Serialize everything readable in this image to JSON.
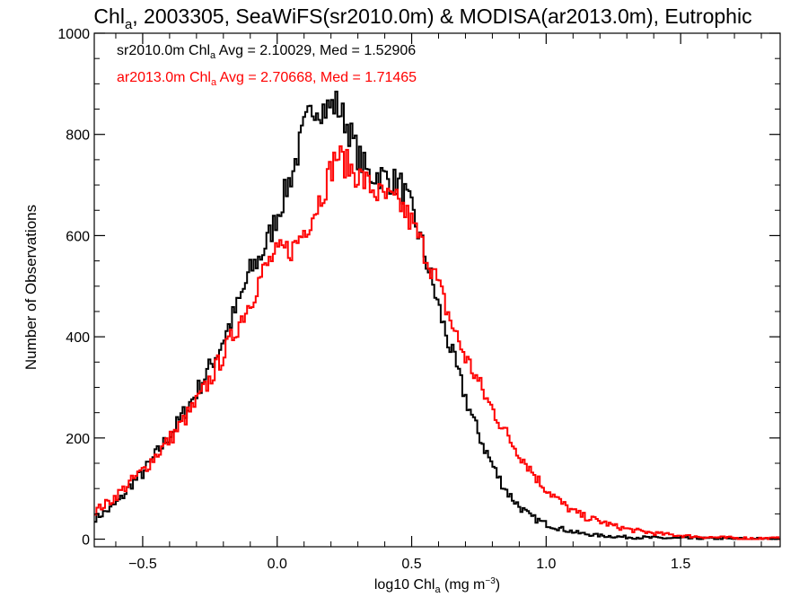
{
  "chart_data": {
    "type": "line",
    "title": {
      "pre": "Chl",
      "sub": "a",
      "post": ", 2003305, SeaWiFS(sr2010.0m) & MODISA(ar2013.0m), Eutrophic"
    },
    "xlabel": {
      "pre": "log10 Chl",
      "sub": "a",
      "mid": " (mg m",
      "sup": "−3",
      "post": ")"
    },
    "ylabel": "Number of Observations",
    "xlim": [
      -0.68,
      1.87
    ],
    "ylim": [
      -15,
      1000
    ],
    "x_ticks": [
      "−0.5",
      "0.0",
      "0.5",
      "1.0",
      "1.5"
    ],
    "x_tick_values": [
      -0.5,
      0.0,
      0.5,
      1.0,
      1.5
    ],
    "y_ticks": [
      "0",
      "200",
      "400",
      "600",
      "800",
      "1000"
    ],
    "y_tick_values": [
      0,
      200,
      400,
      600,
      800,
      1000
    ],
    "grid": false,
    "step": "histogram",
    "series": [
      {
        "name": "sr2010.0m",
        "legend": {
          "pre": "sr2010.0m Chl",
          "sub": "a",
          "post": " Avg = 2.10029, Med = 1.52906"
        },
        "color": "#000000",
        "points": [
          [
            -0.68,
            40
          ],
          [
            -0.62,
            60
          ],
          [
            -0.58,
            80
          ],
          [
            -0.54,
            110
          ],
          [
            -0.5,
            130
          ],
          [
            -0.46,
            160
          ],
          [
            -0.42,
            190
          ],
          [
            -0.38,
            220
          ],
          [
            -0.34,
            255
          ],
          [
            -0.3,
            290
          ],
          [
            -0.26,
            330
          ],
          [
            -0.22,
            370
          ],
          [
            -0.18,
            420
          ],
          [
            -0.14,
            470
          ],
          [
            -0.1,
            530
          ],
          [
            -0.06,
            560
          ],
          [
            -0.02,
            610
          ],
          [
            0.02,
            670
          ],
          [
            0.06,
            730
          ],
          [
            0.1,
            810
          ],
          [
            0.14,
            860
          ],
          [
            0.18,
            850
          ],
          [
            0.22,
            860
          ],
          [
            0.26,
            820
          ],
          [
            0.3,
            760
          ],
          [
            0.34,
            720
          ],
          [
            0.38,
            720
          ],
          [
            0.42,
            710
          ],
          [
            0.46,
            700
          ],
          [
            0.5,
            650
          ],
          [
            0.54,
            580
          ],
          [
            0.58,
            500
          ],
          [
            0.62,
            420
          ],
          [
            0.66,
            350
          ],
          [
            0.7,
            280
          ],
          [
            0.74,
            220
          ],
          [
            0.78,
            170
          ],
          [
            0.82,
            125
          ],
          [
            0.86,
            90
          ],
          [
            0.9,
            65
          ],
          [
            0.94,
            45
          ],
          [
            1.0,
            30
          ],
          [
            1.06,
            20
          ],
          [
            1.12,
            12
          ],
          [
            1.2,
            7
          ],
          [
            1.3,
            4
          ],
          [
            1.45,
            2
          ],
          [
            1.6,
            1
          ],
          [
            1.87,
            0
          ]
        ]
      },
      {
        "name": "ar2013.0m",
        "legend": {
          "pre": "ar2013.0m Chl",
          "sub": "a",
          "post": " Avg = 2.70668, Med = 1.71465"
        },
        "color": "#ff0000",
        "points": [
          [
            -0.68,
            55
          ],
          [
            -0.62,
            75
          ],
          [
            -0.58,
            95
          ],
          [
            -0.54,
            115
          ],
          [
            -0.5,
            135
          ],
          [
            -0.46,
            160
          ],
          [
            -0.42,
            185
          ],
          [
            -0.38,
            210
          ],
          [
            -0.34,
            240
          ],
          [
            -0.3,
            270
          ],
          [
            -0.26,
            305
          ],
          [
            -0.22,
            345
          ],
          [
            -0.18,
            385
          ],
          [
            -0.14,
            430
          ],
          [
            -0.1,
            470
          ],
          [
            -0.06,
            520
          ],
          [
            -0.02,
            555
          ],
          [
            0.02,
            570
          ],
          [
            0.06,
            575
          ],
          [
            0.1,
            610
          ],
          [
            0.14,
            650
          ],
          [
            0.18,
            700
          ],
          [
            0.22,
            760
          ],
          [
            0.26,
            740
          ],
          [
            0.3,
            720
          ],
          [
            0.34,
            700
          ],
          [
            0.38,
            680
          ],
          [
            0.42,
            670
          ],
          [
            0.46,
            660
          ],
          [
            0.5,
            625
          ],
          [
            0.54,
            580
          ],
          [
            0.58,
            530
          ],
          [
            0.62,
            470
          ],
          [
            0.66,
            410
          ],
          [
            0.7,
            360
          ],
          [
            0.74,
            320
          ],
          [
            0.78,
            275
          ],
          [
            0.82,
            240
          ],
          [
            0.86,
            200
          ],
          [
            0.9,
            170
          ],
          [
            0.94,
            140
          ],
          [
            0.98,
            110
          ],
          [
            1.02,
            90
          ],
          [
            1.06,
            70
          ],
          [
            1.1,
            55
          ],
          [
            1.14,
            45
          ],
          [
            1.2,
            35
          ],
          [
            1.26,
            25
          ],
          [
            1.32,
            18
          ],
          [
            1.4,
            12
          ],
          [
            1.5,
            7
          ],
          [
            1.6,
            4
          ],
          [
            1.7,
            2
          ],
          [
            1.87,
            1
          ]
        ]
      }
    ]
  }
}
